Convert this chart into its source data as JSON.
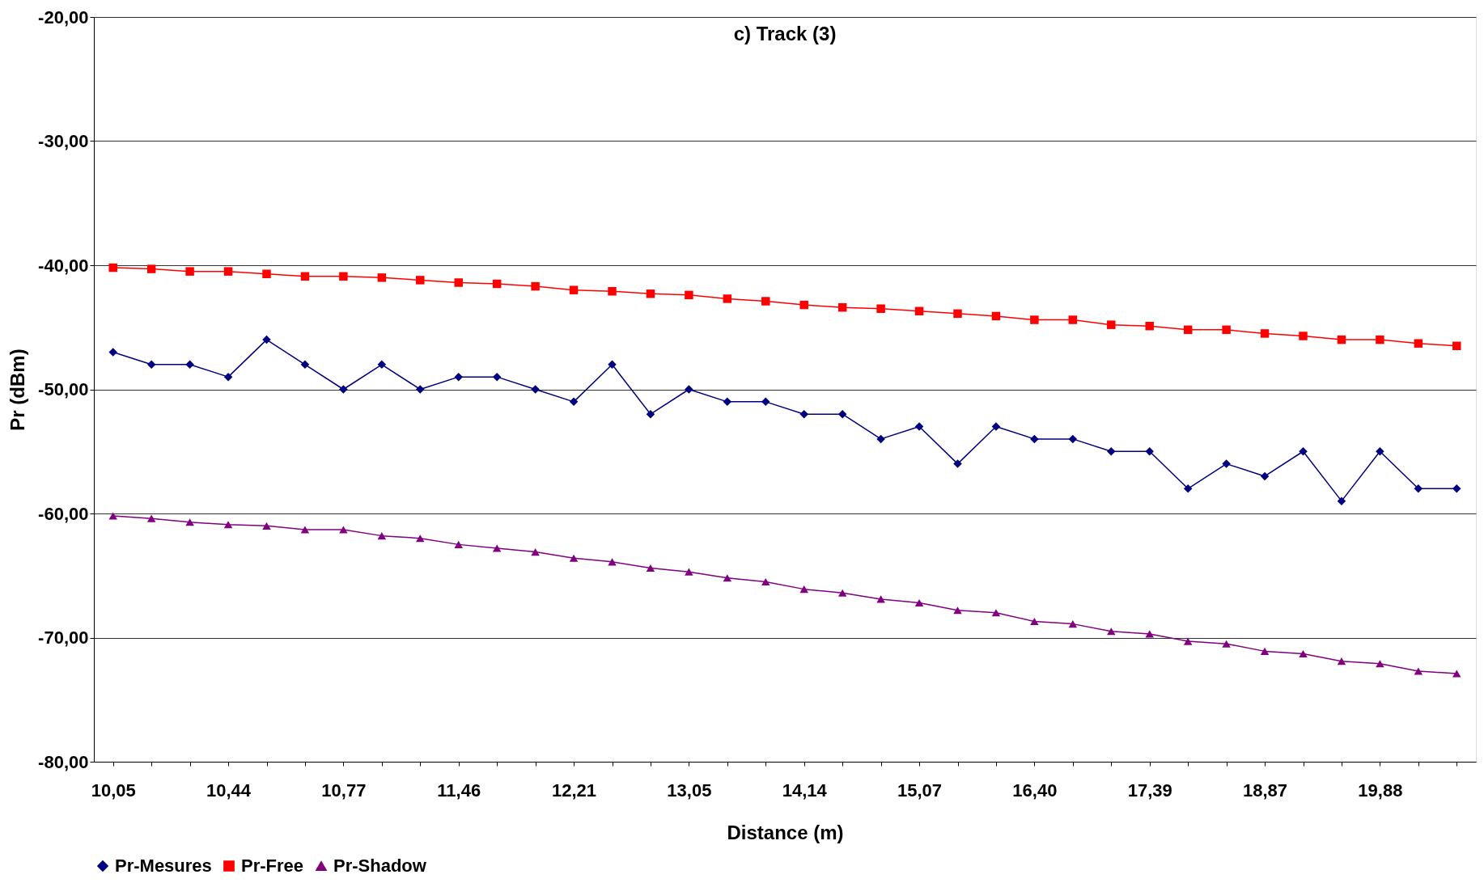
{
  "chart_data": {
    "type": "line",
    "title": "c) Track (3)",
    "xlabel": "Distance (m)",
    "ylabel": "Pr (dBm)",
    "categories": [
      "10,05",
      null,
      null,
      "10,44",
      null,
      null,
      "10,77",
      null,
      null,
      "11,46",
      null,
      null,
      "12,21",
      null,
      null,
      "13,05",
      null,
      null,
      "14,14",
      null,
      null,
      "15,07",
      null,
      null,
      "16,40",
      null,
      null,
      "17,39",
      null,
      null,
      "18,87",
      null,
      null,
      "19,88",
      null,
      null
    ],
    "series": [
      {
        "name": "Pr-Mesures",
        "color": "#000080",
        "marker": "diamond",
        "values": [
          -47,
          -48,
          -48,
          -49,
          -46,
          -48,
          -50,
          -48,
          -50,
          -49,
          -49,
          -50,
          -51,
          -48,
          -52,
          -50,
          -51,
          -51,
          -52,
          -52,
          -54,
          -53,
          -56,
          -53,
          -54,
          -54,
          -55,
          -55,
          -58,
          -56,
          -57,
          -55,
          -59,
          -55,
          -58,
          -58
        ]
      },
      {
        "name": "Pr-Free",
        "color": "#ff0000",
        "marker": "square",
        "values": [
          -40.2,
          -40.3,
          -40.5,
          -40.5,
          -40.7,
          -40.9,
          -40.9,
          -41.0,
          -41.2,
          -41.4,
          -41.5,
          -41.7,
          -42.0,
          -42.1,
          -42.3,
          -42.4,
          -42.7,
          -42.9,
          -43.2,
          -43.4,
          -43.5,
          -43.7,
          -43.9,
          -44.1,
          -44.4,
          -44.4,
          -44.8,
          -44.9,
          -45.2,
          -45.2,
          -45.5,
          -45.7,
          -46.0,
          -46.0,
          -46.3,
          -46.5
        ]
      },
      {
        "name": "Pr-Shadow",
        "color": "#800080",
        "marker": "triangle",
        "values": [
          -60.2,
          -60.4,
          -60.7,
          -60.9,
          -61.0,
          -61.3,
          -61.3,
          -61.8,
          -62.0,
          -62.5,
          -62.8,
          -63.1,
          -63.6,
          -63.9,
          -64.4,
          -64.7,
          -65.2,
          -65.5,
          -66.1,
          -66.4,
          -66.9,
          -67.2,
          -67.8,
          -68.0,
          -68.7,
          -68.9,
          -69.5,
          -69.7,
          -70.3,
          -70.5,
          -71.1,
          -71.3,
          -71.9,
          -72.1,
          -72.7,
          -72.9
        ]
      }
    ],
    "ylim": [
      -80,
      -20
    ],
    "yticks": [
      {
        "value": -80,
        "label": "-80,00"
      },
      {
        "value": -70,
        "label": "-70,00"
      },
      {
        "value": -60,
        "label": "-60,00"
      },
      {
        "value": -50,
        "label": "-50,00"
      },
      {
        "value": -40,
        "label": "-40,00"
      },
      {
        "value": -30,
        "label": "-30,00"
      },
      {
        "value": -20,
        "label": "-20,00"
      }
    ],
    "grid": "y",
    "legend": "bottom",
    "line_style": "solid"
  }
}
